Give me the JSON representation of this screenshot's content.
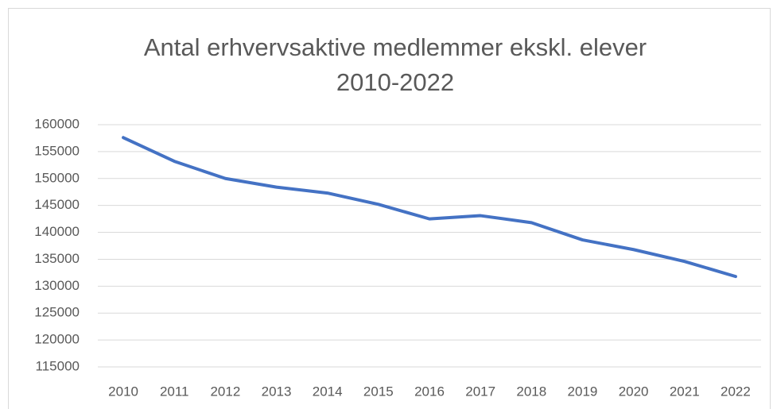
{
  "chart_data": {
    "type": "line",
    "title": [
      "Antal erhvervsaktive medlemmer ekskl. elever",
      "2010-2022"
    ],
    "categories": [
      "2010",
      "2011",
      "2012",
      "2013",
      "2014",
      "2015",
      "2016",
      "2017",
      "2018",
      "2019",
      "2020",
      "2021",
      "2022"
    ],
    "series": [
      {
        "name": "Antal",
        "color": "#4472c4",
        "values": [
          157600,
          153200,
          150000,
          148400,
          147300,
          145200,
          142500,
          143100,
          141800,
          138600,
          136800,
          134600,
          131800
        ]
      }
    ],
    "ylim": [
      115000,
      160000
    ],
    "yticks": [
      115000,
      120000,
      125000,
      130000,
      135000,
      140000,
      145000,
      150000,
      155000,
      160000
    ],
    "grid": true
  }
}
